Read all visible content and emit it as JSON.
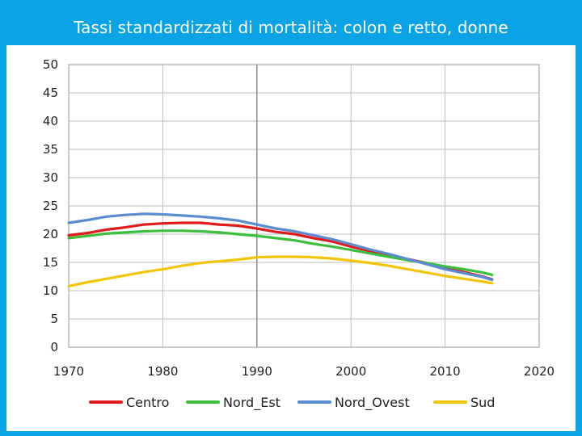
{
  "slide": {
    "title": "Tassi standardizzati di mortalità: colon e retto, donne",
    "background_color": "#0aa4e6"
  },
  "chart_data": {
    "type": "line",
    "title": "Tassi standardizzati di mortalità: colon e retto, donne",
    "xlabel": "",
    "ylabel": "",
    "xlim": [
      1970,
      2020
    ],
    "ylim": [
      0,
      50
    ],
    "x_ticks": [
      1970,
      1980,
      1990,
      2000,
      2010,
      2020
    ],
    "y_ticks": [
      0,
      5,
      10,
      15,
      20,
      25,
      30,
      35,
      40,
      45,
      50
    ],
    "grid": true,
    "legend_position": "bottom",
    "x": [
      1970,
      1972,
      1974,
      1976,
      1978,
      1980,
      1982,
      1984,
      1986,
      1988,
      1990,
      1992,
      1994,
      1996,
      1998,
      2000,
      2002,
      2004,
      2006,
      2008,
      2010,
      2012,
      2014,
      2015
    ],
    "series": [
      {
        "name": "Centro",
        "color": "#e31a1c",
        "values": [
          19.8,
          20.2,
          20.8,
          21.2,
          21.7,
          21.9,
          22.0,
          22.0,
          21.7,
          21.5,
          21.0,
          20.4,
          20.0,
          19.3,
          18.7,
          17.8,
          17.0,
          16.3,
          15.6,
          14.9,
          14.0,
          13.3,
          12.5,
          12.0
        ]
      },
      {
        "name": "Nord_Est",
        "color": "#3cbf3c",
        "values": [
          19.3,
          19.7,
          20.1,
          20.3,
          20.5,
          20.6,
          20.6,
          20.5,
          20.3,
          20.0,
          19.7,
          19.3,
          18.9,
          18.3,
          17.8,
          17.2,
          16.6,
          16.0,
          15.4,
          14.9,
          14.3,
          13.8,
          13.2,
          12.8
        ]
      },
      {
        "name": "Nord_Ovest",
        "color": "#5b8bd0",
        "values": [
          22.0,
          22.5,
          23.1,
          23.4,
          23.6,
          23.5,
          23.3,
          23.1,
          22.8,
          22.4,
          21.7,
          21.0,
          20.5,
          19.8,
          19.1,
          18.2,
          17.3,
          16.5,
          15.6,
          14.7,
          13.8,
          13.1,
          12.4,
          11.9
        ]
      },
      {
        "name": "Sud",
        "color": "#f2c500",
        "values": [
          10.8,
          11.5,
          12.1,
          12.7,
          13.3,
          13.8,
          14.4,
          14.9,
          15.2,
          15.5,
          15.9,
          16.0,
          16.0,
          15.9,
          15.7,
          15.3,
          14.9,
          14.4,
          13.8,
          13.2,
          12.6,
          12.1,
          11.6,
          11.3
        ]
      }
    ]
  }
}
